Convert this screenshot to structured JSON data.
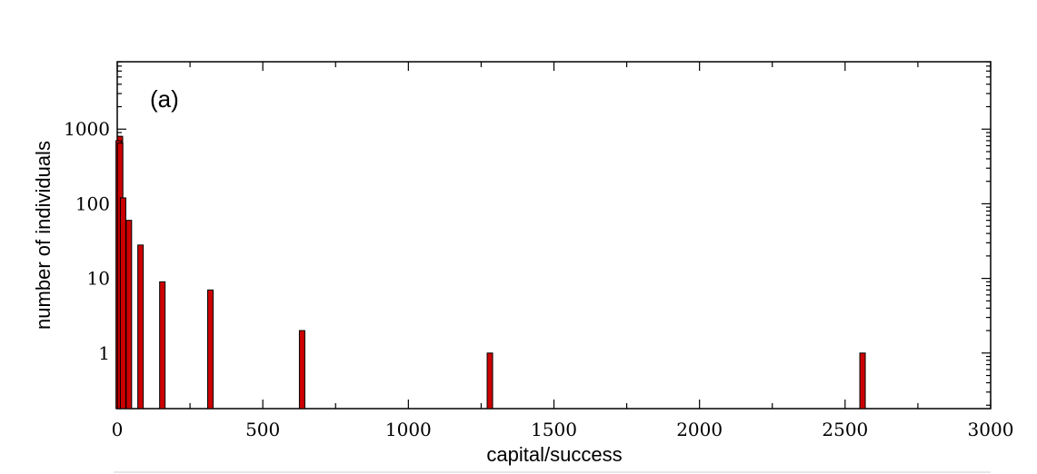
{
  "chart_data": {
    "type": "bar",
    "panel_label": "(a)",
    "xlabel": "capital/success",
    "ylabel": "number of individuals",
    "xlim": [
      0,
      3000
    ],
    "ylim": [
      0.18,
      8000
    ],
    "yscale": "log",
    "x_ticks": [
      0,
      500,
      1000,
      1500,
      2000,
      2500,
      3000
    ],
    "x_tick_labels": [
      "0",
      "500",
      "1000",
      "1500",
      "2000",
      "2500",
      "3000"
    ],
    "y_ticks": [
      1,
      10,
      100,
      1000
    ],
    "y_tick_labels": [
      "1",
      "10",
      "100",
      "1000"
    ],
    "bar_color": "#cc0000",
    "bars": [
      {
        "x": 0,
        "value": 800
      },
      {
        "x": 5,
        "value": 700
      },
      {
        "x": 10,
        "value": 650
      },
      {
        "x": 20,
        "value": 120
      },
      {
        "x": 40,
        "value": 60
      },
      {
        "x": 80,
        "value": 28
      },
      {
        "x": 155,
        "value": 9
      },
      {
        "x": 320,
        "value": 7
      },
      {
        "x": 635,
        "value": 2
      },
      {
        "x": 1280,
        "value": 1
      },
      {
        "x": 2560,
        "value": 1
      }
    ],
    "grid": false,
    "legend": "none"
  }
}
